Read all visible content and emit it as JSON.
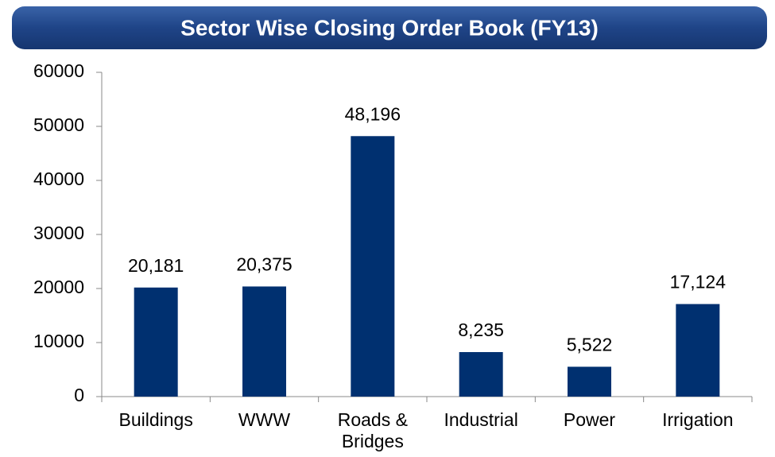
{
  "chart_data": {
    "type": "bar",
    "title": "Sector Wise Closing Order Book (FY13)",
    "categories": [
      "Buildings",
      "WWW",
      "Roads & Bridges",
      "Industrial",
      "Power",
      "Irrigation"
    ],
    "values": [
      20181,
      20375,
      48196,
      8235,
      5522,
      17124
    ],
    "value_labels": [
      "20,181",
      "20,375",
      "48,196",
      "8,235",
      "5,522",
      "17,124"
    ],
    "color": "#003070",
    "ylim": [
      0,
      60000
    ],
    "yticks": [
      0,
      10000,
      20000,
      30000,
      40000,
      50000,
      60000
    ],
    "grid": false
  }
}
